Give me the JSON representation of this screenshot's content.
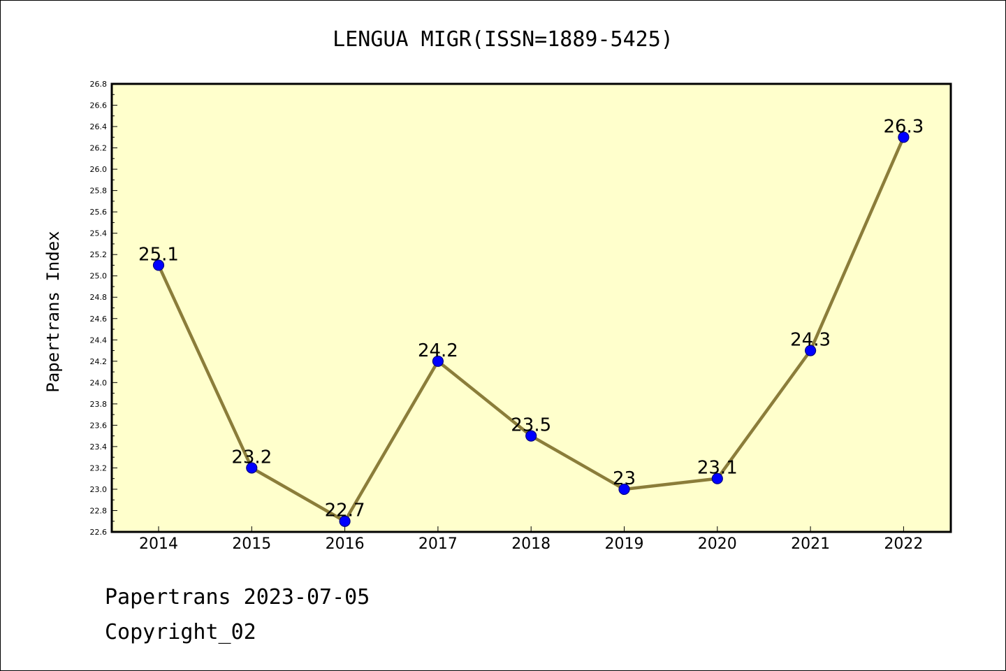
{
  "chart_data": {
    "type": "line",
    "title": "LENGUA MIGR(ISSN=1889-5425)",
    "xlabel": "",
    "ylabel": "Papertrans Index",
    "categories": [
      "2014",
      "2015",
      "2016",
      "2017",
      "2018",
      "2019",
      "2020",
      "2021",
      "2022"
    ],
    "series": [
      {
        "values": [
          25.1,
          23.2,
          22.7,
          24.2,
          23.5,
          23.0,
          23.1,
          24.3,
          26.3
        ],
        "labels": [
          "25.1",
          "23.2",
          "22.7",
          "24.2",
          "23.5",
          "23",
          "23.1",
          "24.3",
          "26.3"
        ]
      }
    ],
    "ylim": [
      22.6,
      26.8
    ],
    "yticks": [
      "22.6",
      "22.8",
      "23.0",
      "23.2",
      "23.4",
      "23.6",
      "23.8",
      "24.0",
      "24.2",
      "24.4",
      "24.6",
      "24.8",
      "25.0",
      "25.2",
      "25.4",
      "25.6",
      "25.8",
      "26.0",
      "26.2",
      "26.4",
      "26.6",
      "26.8"
    ],
    "grid": false,
    "legend": "none",
    "colors": {
      "plot_background": "#ffffcc",
      "line": "#8b7d3a",
      "marker_fill": "#0000ff",
      "marker_edge": "#000080"
    }
  },
  "footer": {
    "line1": "Papertrans 2023-07-05",
    "line2": "Copyright_02"
  }
}
